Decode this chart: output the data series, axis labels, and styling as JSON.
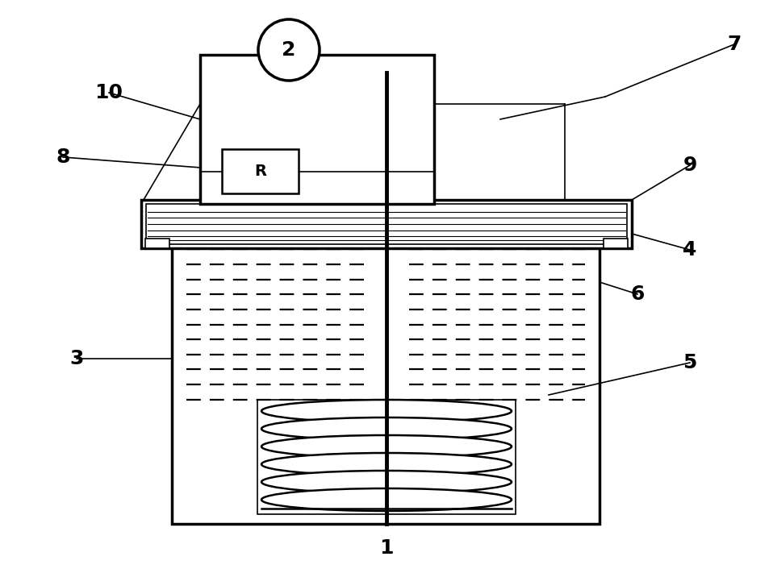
{
  "bg_color": "#ffffff",
  "line_color": "#000000",
  "fig_width": 9.58,
  "fig_height": 7.06,
  "dpi": 100
}
